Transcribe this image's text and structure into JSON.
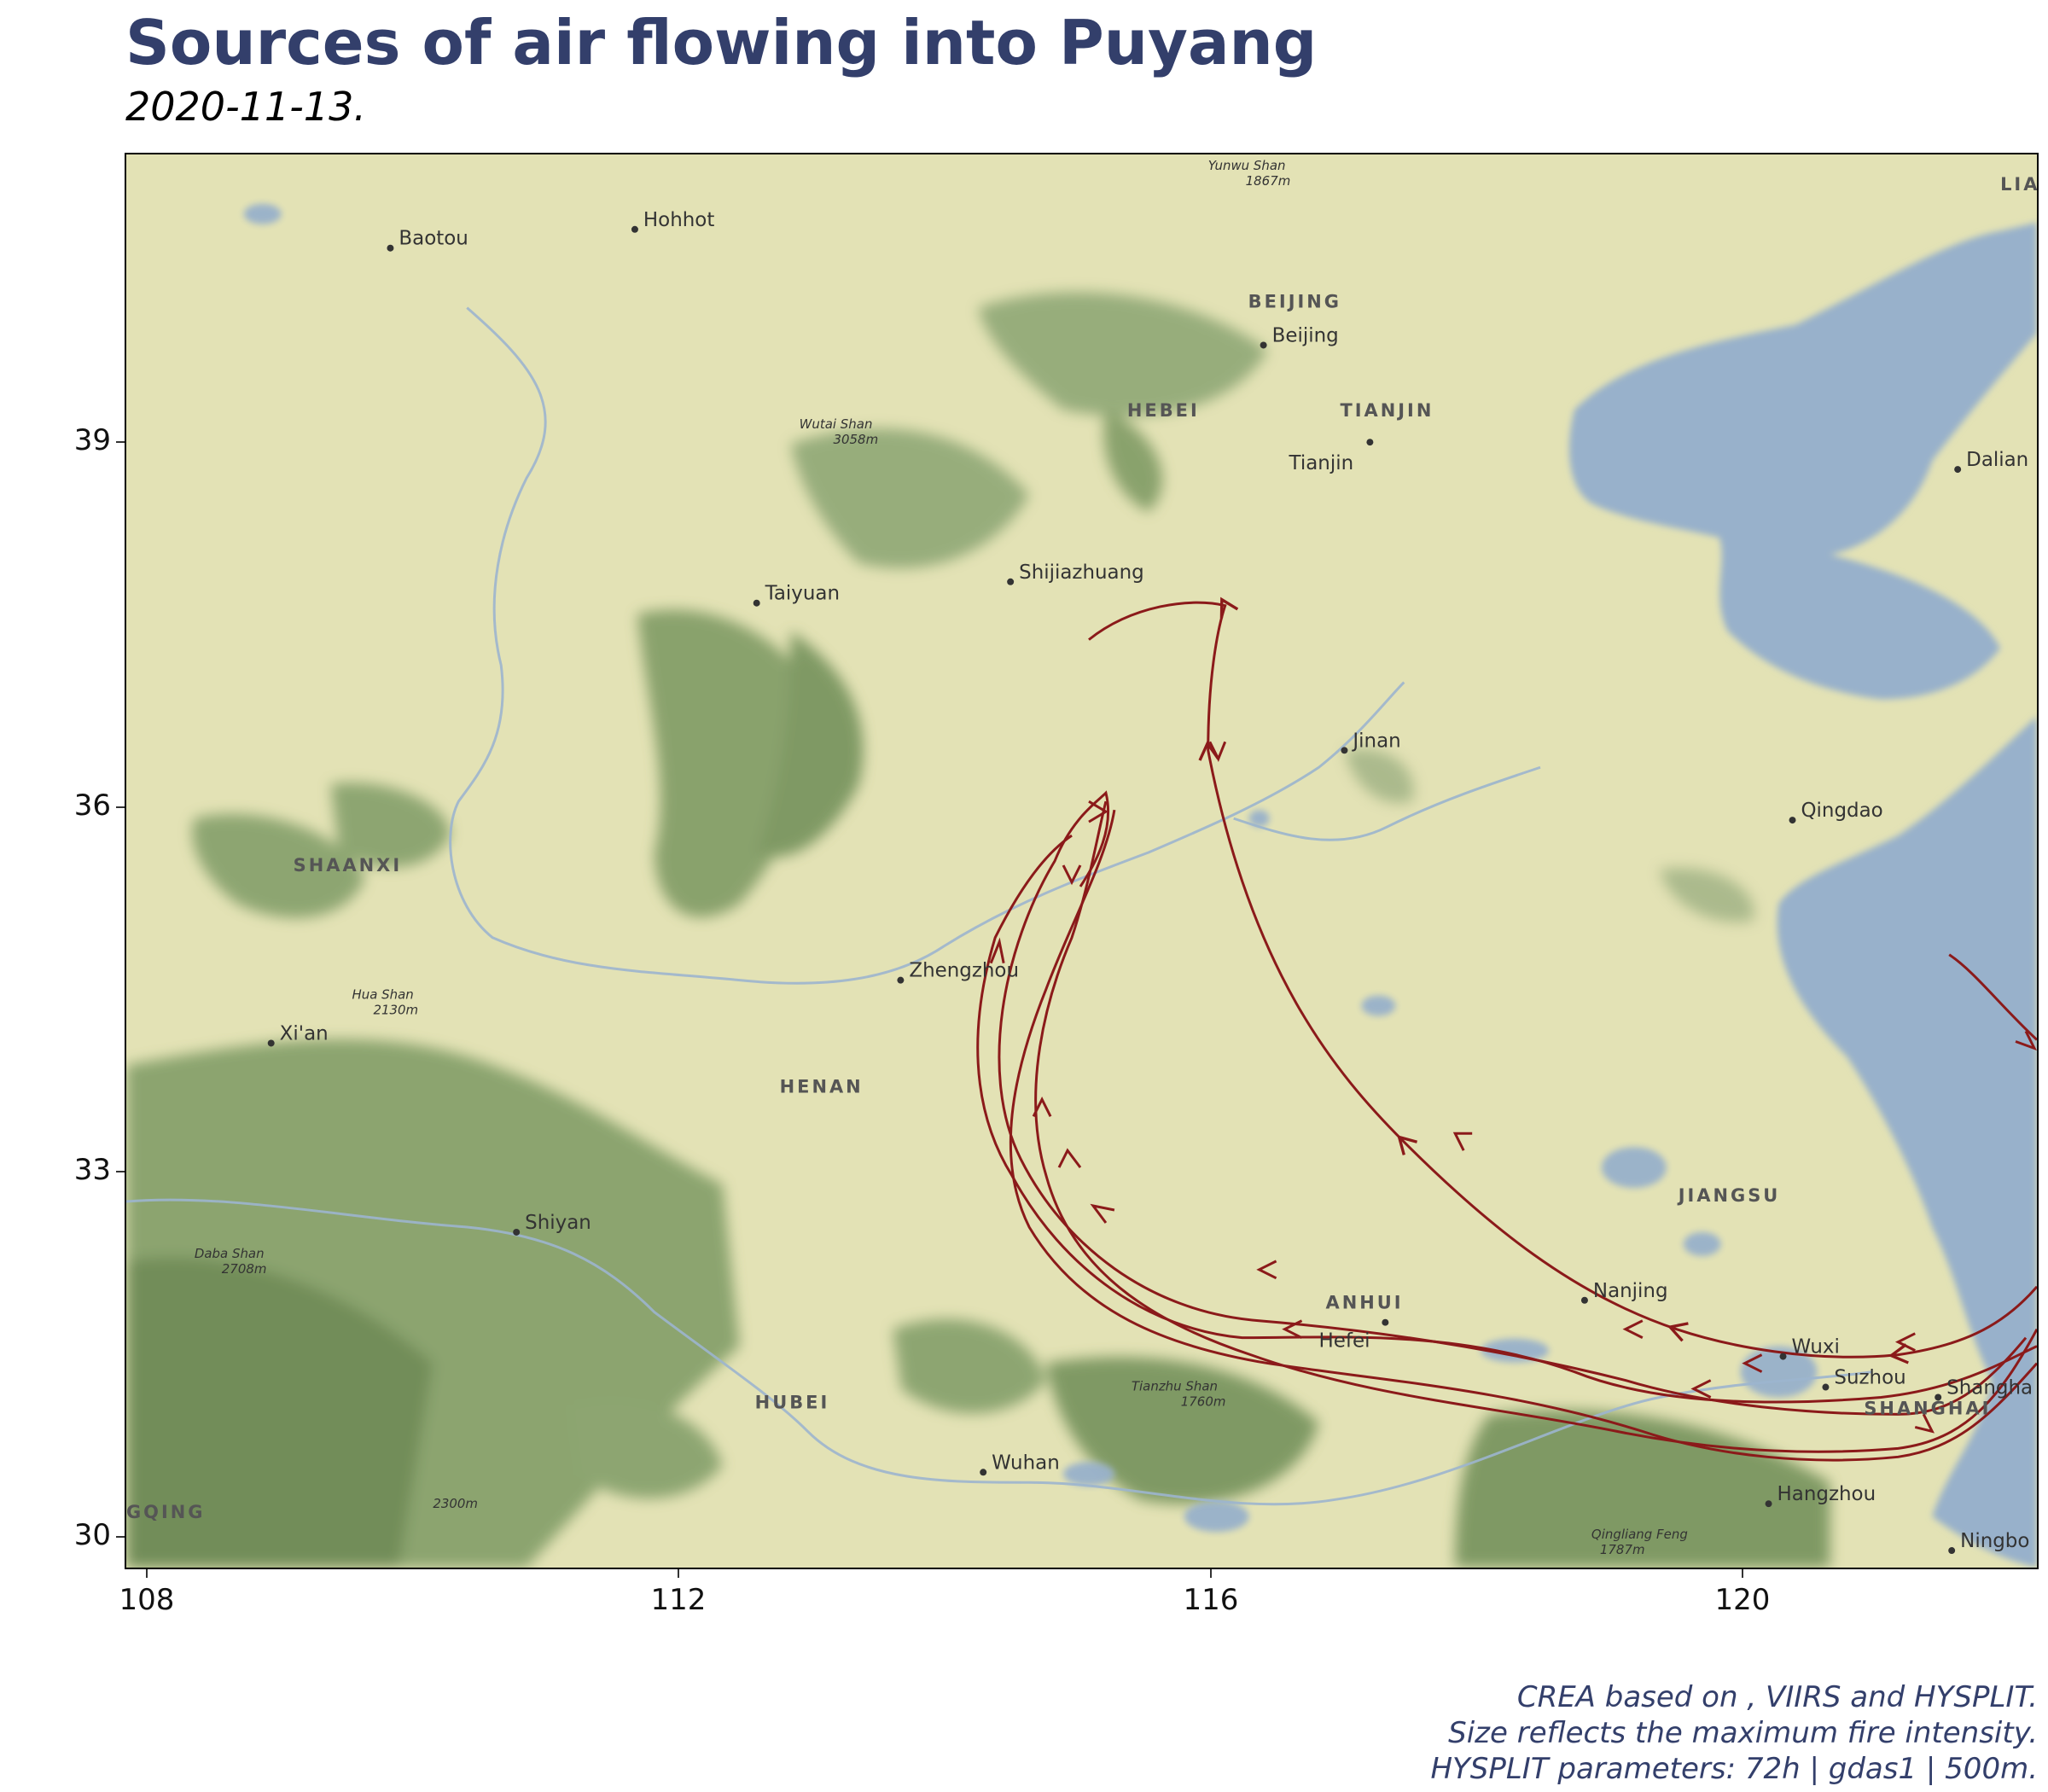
{
  "title": "Sources of air flowing into Puyang",
  "subtitle": "2020-11-13.",
  "caption": [
    "CREA based on , VIIRS and HYSPLIT.",
    "Size reflects the maximum fire intensity.",
    "HYSPLIT parameters: 72h | gdas1 | 500m."
  ],
  "colors": {
    "title": "#333f6b",
    "trajectory": "#8b1a1a",
    "land": "#e3e2b5",
    "water": "#98b1cb",
    "mountain": "#6f8f58"
  },
  "axes": {
    "x_ticks": [
      "108",
      "112",
      "116",
      "120"
    ],
    "y_ticks": [
      "39",
      "36",
      "33",
      "30"
    ]
  },
  "map": {
    "cities": [
      {
        "name": "Baotou"
      },
      {
        "name": "Hohhot"
      },
      {
        "name": "Beijing"
      },
      {
        "name": "Tianjin"
      },
      {
        "name": "Dalian"
      },
      {
        "name": "Taiyuan"
      },
      {
        "name": "Shijiazhuang"
      },
      {
        "name": "Jinan"
      },
      {
        "name": "Qingdao"
      },
      {
        "name": "Zhengzhou"
      },
      {
        "name": "Xi'an"
      },
      {
        "name": "Shiyan"
      },
      {
        "name": "Nanjing"
      },
      {
        "name": "Hefei"
      },
      {
        "name": "Wuxi"
      },
      {
        "name": "Suzhou"
      },
      {
        "name": "Shangha"
      },
      {
        "name": "Wuhan"
      },
      {
        "name": "Hangzhou"
      },
      {
        "name": "Ningbo"
      }
    ],
    "provinces": [
      {
        "name": "BEIJING"
      },
      {
        "name": "HEBEI"
      },
      {
        "name": "TIANJIN"
      },
      {
        "name": "SHAANXI"
      },
      {
        "name": "HENAN"
      },
      {
        "name": "JIANGSU"
      },
      {
        "name": "ANHUI"
      },
      {
        "name": "HUBEI"
      },
      {
        "name": "SHANGHAI"
      },
      {
        "name": "GQING"
      },
      {
        "name": "LIA"
      }
    ],
    "peaks": [
      {
        "name": "Yunwu Shan",
        "elev": "1867m"
      },
      {
        "name": "Wutai Shan",
        "elev": "3058m"
      },
      {
        "name": "Hua Shan",
        "elev": "2130m"
      },
      {
        "name": "Daba Shan",
        "elev": "2708m"
      },
      {
        "name": "Tianzhu Shan",
        "elev": "1760m"
      },
      {
        "name": "",
        "elev": "2300m"
      },
      {
        "name": "Qingliang Feng",
        "elev": "1787m"
      }
    ]
  }
}
